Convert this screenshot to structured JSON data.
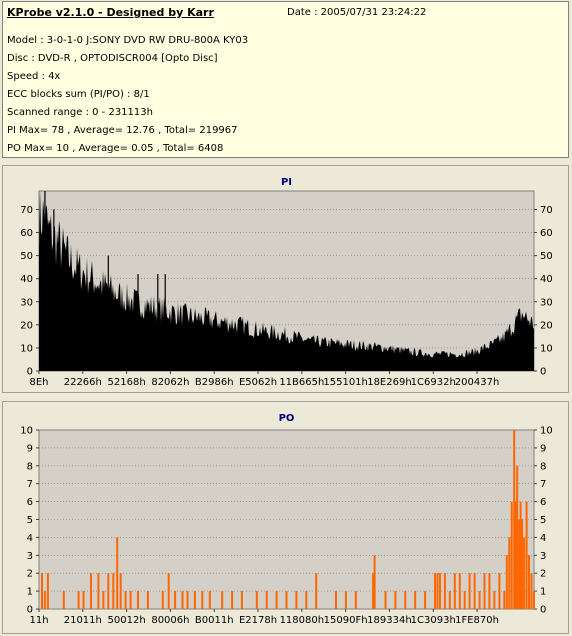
{
  "info": {
    "title": "KProbe v2.1.0 - Designed by Karr",
    "date": "Date : 2005/07/31 23:24:22",
    "lines": [
      "Model : 3-0-1-0 J:SONY    DVD RW DRU-800A  KY03",
      "Disc : DVD-R , OPTODISCR004 [Opto Disc]",
      "Speed : 4x",
      "ECC blocks sum (PI/PO) : 8/1",
      "Scanned range : 0 - 231113h",
      "PI Max= 78 , Average= 12.76 , Total= 219967",
      "PO Max= 10 , Average= 0.05 , Total= 6408"
    ]
  },
  "colors": {
    "pi_fill": "#000000",
    "po_fill": "#ff6600",
    "title": "#000080",
    "plot_bg": "#d4d0c8"
  },
  "chart_data": [
    {
      "type": "area",
      "title": "PI",
      "ylim": [
        0,
        78
      ],
      "yticks": [
        0,
        10,
        20,
        30,
        40,
        50,
        60,
        70
      ],
      "xticks": [
        "8Eh",
        "22266h",
        "52168h",
        "82062h",
        "B2986h",
        "E5062h",
        "11B665h",
        "155101h",
        "18E269h",
        "1C6932h",
        "200437h"
      ],
      "envelope": [
        [
          0.0,
          72
        ],
        [
          0.01,
          74
        ],
        [
          0.02,
          66
        ],
        [
          0.04,
          60
        ],
        [
          0.06,
          53
        ],
        [
          0.08,
          48
        ],
        [
          0.1,
          45
        ],
        [
          0.13,
          40
        ],
        [
          0.16,
          36
        ],
        [
          0.2,
          32
        ],
        [
          0.25,
          29
        ],
        [
          0.3,
          26
        ],
        [
          0.35,
          24
        ],
        [
          0.4,
          22
        ],
        [
          0.45,
          19
        ],
        [
          0.5,
          17
        ],
        [
          0.55,
          14
        ],
        [
          0.6,
          13
        ],
        [
          0.65,
          12
        ],
        [
          0.7,
          11
        ],
        [
          0.75,
          9
        ],
        [
          0.8,
          8
        ],
        [
          0.85,
          8
        ],
        [
          0.88,
          9
        ],
        [
          0.9,
          11
        ],
        [
          0.92,
          13
        ],
        [
          0.94,
          16
        ],
        [
          0.96,
          22
        ],
        [
          0.975,
          27
        ],
        [
          0.985,
          25
        ],
        [
          1.0,
          22
        ]
      ],
      "spikes": [
        [
          0.012,
          78
        ],
        [
          0.03,
          70
        ],
        [
          0.14,
          50
        ],
        [
          0.2,
          42
        ],
        [
          0.24,
          42
        ],
        [
          0.255,
          42
        ]
      ]
    },
    {
      "type": "bar",
      "title": "PO",
      "ylim": [
        0,
        10
      ],
      "yticks": [
        0,
        1,
        2,
        3,
        4,
        5,
        6,
        7,
        8,
        9,
        10
      ],
      "xticks": [
        "11h",
        "21011h",
        "50012h",
        "80006h",
        "B0011h",
        "E2178h",
        "118080h",
        "15090Fh",
        "189334h",
        "1C3093h",
        "1FE870h"
      ],
      "bars": [
        [
          0.006,
          2
        ],
        [
          0.012,
          1
        ],
        [
          0.018,
          2
        ],
        [
          0.05,
          1
        ],
        [
          0.08,
          1
        ],
        [
          0.09,
          1
        ],
        [
          0.105,
          2
        ],
        [
          0.12,
          2
        ],
        [
          0.13,
          1
        ],
        [
          0.14,
          2
        ],
        [
          0.15,
          2
        ],
        [
          0.158,
          4
        ],
        [
          0.165,
          2
        ],
        [
          0.175,
          1
        ],
        [
          0.185,
          1
        ],
        [
          0.2,
          1
        ],
        [
          0.22,
          1
        ],
        [
          0.25,
          1
        ],
        [
          0.262,
          2
        ],
        [
          0.275,
          1
        ],
        [
          0.29,
          1
        ],
        [
          0.3,
          1
        ],
        [
          0.315,
          1
        ],
        [
          0.33,
          1
        ],
        [
          0.345,
          1
        ],
        [
          0.37,
          1
        ],
        [
          0.39,
          1
        ],
        [
          0.41,
          1
        ],
        [
          0.44,
          1
        ],
        [
          0.46,
          1
        ],
        [
          0.48,
          1
        ],
        [
          0.5,
          1
        ],
        [
          0.52,
          1
        ],
        [
          0.54,
          1
        ],
        [
          0.56,
          2
        ],
        [
          0.6,
          1
        ],
        [
          0.62,
          1
        ],
        [
          0.64,
          1
        ],
        [
          0.675,
          2
        ],
        [
          0.678,
          3
        ],
        [
          0.7,
          1
        ],
        [
          0.72,
          1
        ],
        [
          0.74,
          1
        ],
        [
          0.76,
          1
        ],
        [
          0.78,
          1
        ],
        [
          0.8,
          2
        ],
        [
          0.805,
          2
        ],
        [
          0.81,
          2
        ],
        [
          0.82,
          2
        ],
        [
          0.83,
          1
        ],
        [
          0.84,
          2
        ],
        [
          0.85,
          2
        ],
        [
          0.86,
          1
        ],
        [
          0.87,
          2
        ],
        [
          0.88,
          2
        ],
        [
          0.89,
          1
        ],
        [
          0.9,
          2
        ],
        [
          0.91,
          2
        ],
        [
          0.92,
          1
        ],
        [
          0.93,
          2
        ],
        [
          0.94,
          1
        ],
        [
          0.945,
          3
        ],
        [
          0.95,
          4
        ],
        [
          0.955,
          6
        ],
        [
          0.96,
          10
        ],
        [
          0.963,
          6
        ],
        [
          0.966,
          8
        ],
        [
          0.97,
          5
        ],
        [
          0.973,
          6
        ],
        [
          0.976,
          5
        ],
        [
          0.98,
          4
        ],
        [
          0.985,
          6
        ],
        [
          0.99,
          3
        ],
        [
          0.995,
          2
        ],
        [
          1.0,
          1
        ]
      ]
    }
  ]
}
